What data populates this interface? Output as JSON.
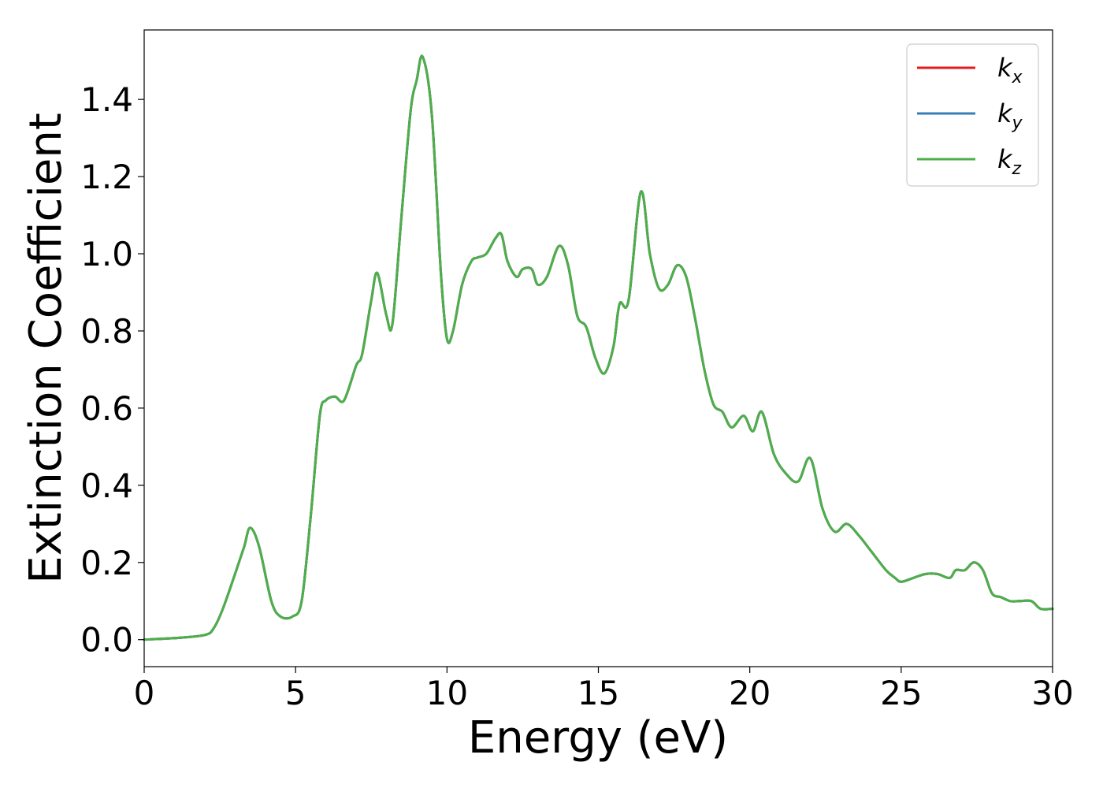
{
  "chart_data": {
    "type": "line",
    "title": "",
    "xlabel": "Energy (eV)",
    "ylabel": "Extinction Coefficient",
    "xlim": [
      0,
      30
    ],
    "ylim": [
      -0.07,
      1.58
    ],
    "xticks": [
      0,
      5,
      10,
      15,
      20,
      25,
      30
    ],
    "xtick_labels": [
      "0",
      "5",
      "10",
      "15",
      "20",
      "25",
      "30"
    ],
    "yticks": [
      0.0,
      0.2,
      0.4,
      0.6,
      0.8,
      1.0,
      1.2,
      1.4
    ],
    "ytick_labels": [
      "0.0",
      "0.2",
      "0.4",
      "0.6",
      "0.8",
      "1.0",
      "1.2",
      "1.4"
    ],
    "grid": false,
    "legend_position": "top-right",
    "x": [
      0,
      1,
      2,
      2.3,
      2.6,
      3.0,
      3.3,
      3.5,
      3.8,
      4.2,
      4.5,
      4.9,
      5.2,
      5.5,
      5.8,
      6.0,
      6.3,
      6.6,
      7.0,
      7.2,
      7.5,
      7.7,
      8.0,
      8.2,
      8.5,
      8.8,
      9.0,
      9.2,
      9.5,
      9.8,
      10.0,
      10.2,
      10.5,
      10.8,
      11.0,
      11.3,
      11.6,
      11.8,
      12.0,
      12.3,
      12.5,
      12.8,
      13.0,
      13.3,
      13.7,
      14.0,
      14.3,
      14.6,
      14.9,
      15.2,
      15.5,
      15.7,
      16.0,
      16.4,
      16.7,
      17.0,
      17.3,
      17.6,
      17.9,
      18.2,
      18.5,
      18.8,
      19.1,
      19.4,
      19.8,
      20.1,
      20.4,
      20.8,
      21.2,
      21.6,
      22.0,
      22.4,
      22.8,
      23.2,
      23.6,
      24.0,
      24.5,
      24.8,
      25.0,
      25.4,
      25.8,
      26.2,
      26.6,
      26.8,
      27.1,
      27.4,
      27.7,
      28.0,
      28.3,
      28.6,
      28.9,
      29.3,
      29.6,
      30.0
    ],
    "series": [
      {
        "name": "k_x",
        "label_main": "k",
        "label_sub": "x",
        "color": "#e41a1c",
        "values": [
          0.0,
          0.004,
          0.012,
          0.03,
          0.08,
          0.17,
          0.24,
          0.29,
          0.24,
          0.1,
          0.06,
          0.06,
          0.1,
          0.32,
          0.58,
          0.62,
          0.63,
          0.62,
          0.71,
          0.74,
          0.88,
          0.95,
          0.84,
          0.82,
          1.1,
          1.37,
          1.45,
          1.51,
          1.36,
          0.95,
          0.78,
          0.8,
          0.92,
          0.98,
          0.99,
          1.0,
          1.04,
          1.05,
          0.98,
          0.94,
          0.96,
          0.96,
          0.92,
          0.94,
          1.02,
          0.97,
          0.84,
          0.81,
          0.73,
          0.69,
          0.76,
          0.87,
          0.88,
          1.16,
          1.0,
          0.91,
          0.92,
          0.97,
          0.94,
          0.83,
          0.7,
          0.61,
          0.59,
          0.55,
          0.58,
          0.54,
          0.59,
          0.48,
          0.43,
          0.41,
          0.47,
          0.34,
          0.28,
          0.3,
          0.27,
          0.23,
          0.18,
          0.16,
          0.15,
          0.16,
          0.17,
          0.17,
          0.16,
          0.18,
          0.18,
          0.2,
          0.18,
          0.12,
          0.11,
          0.1,
          0.1,
          0.1,
          0.08,
          0.08
        ]
      },
      {
        "name": "k_y",
        "label_main": "k",
        "label_sub": "y",
        "color": "#377eb8",
        "values": [
          0.0,
          0.004,
          0.012,
          0.03,
          0.08,
          0.17,
          0.24,
          0.29,
          0.24,
          0.1,
          0.06,
          0.06,
          0.1,
          0.32,
          0.58,
          0.62,
          0.63,
          0.62,
          0.71,
          0.74,
          0.88,
          0.95,
          0.84,
          0.82,
          1.1,
          1.37,
          1.45,
          1.51,
          1.36,
          0.95,
          0.78,
          0.8,
          0.92,
          0.98,
          0.99,
          1.0,
          1.04,
          1.05,
          0.98,
          0.94,
          0.96,
          0.96,
          0.92,
          0.94,
          1.02,
          0.97,
          0.84,
          0.81,
          0.73,
          0.69,
          0.76,
          0.87,
          0.88,
          1.16,
          1.0,
          0.91,
          0.92,
          0.97,
          0.94,
          0.83,
          0.7,
          0.61,
          0.59,
          0.55,
          0.58,
          0.54,
          0.59,
          0.48,
          0.43,
          0.41,
          0.47,
          0.34,
          0.28,
          0.3,
          0.27,
          0.23,
          0.18,
          0.16,
          0.15,
          0.16,
          0.17,
          0.17,
          0.16,
          0.18,
          0.18,
          0.2,
          0.18,
          0.12,
          0.11,
          0.1,
          0.1,
          0.1,
          0.08,
          0.08
        ]
      },
      {
        "name": "k_z",
        "label_main": "k",
        "label_sub": "z",
        "color": "#4daf4a",
        "values": [
          0.0,
          0.004,
          0.012,
          0.03,
          0.08,
          0.17,
          0.24,
          0.29,
          0.24,
          0.1,
          0.06,
          0.06,
          0.1,
          0.32,
          0.58,
          0.62,
          0.63,
          0.62,
          0.71,
          0.74,
          0.88,
          0.95,
          0.84,
          0.82,
          1.1,
          1.37,
          1.45,
          1.51,
          1.36,
          0.95,
          0.78,
          0.8,
          0.92,
          0.98,
          0.99,
          1.0,
          1.04,
          1.05,
          0.98,
          0.94,
          0.96,
          0.96,
          0.92,
          0.94,
          1.02,
          0.97,
          0.84,
          0.81,
          0.73,
          0.69,
          0.76,
          0.87,
          0.88,
          1.16,
          1.0,
          0.91,
          0.92,
          0.97,
          0.94,
          0.83,
          0.7,
          0.61,
          0.59,
          0.55,
          0.58,
          0.54,
          0.59,
          0.48,
          0.43,
          0.41,
          0.47,
          0.34,
          0.28,
          0.3,
          0.27,
          0.23,
          0.18,
          0.16,
          0.15,
          0.16,
          0.17,
          0.17,
          0.16,
          0.18,
          0.18,
          0.2,
          0.18,
          0.12,
          0.11,
          0.1,
          0.1,
          0.1,
          0.08,
          0.08
        ]
      }
    ]
  }
}
